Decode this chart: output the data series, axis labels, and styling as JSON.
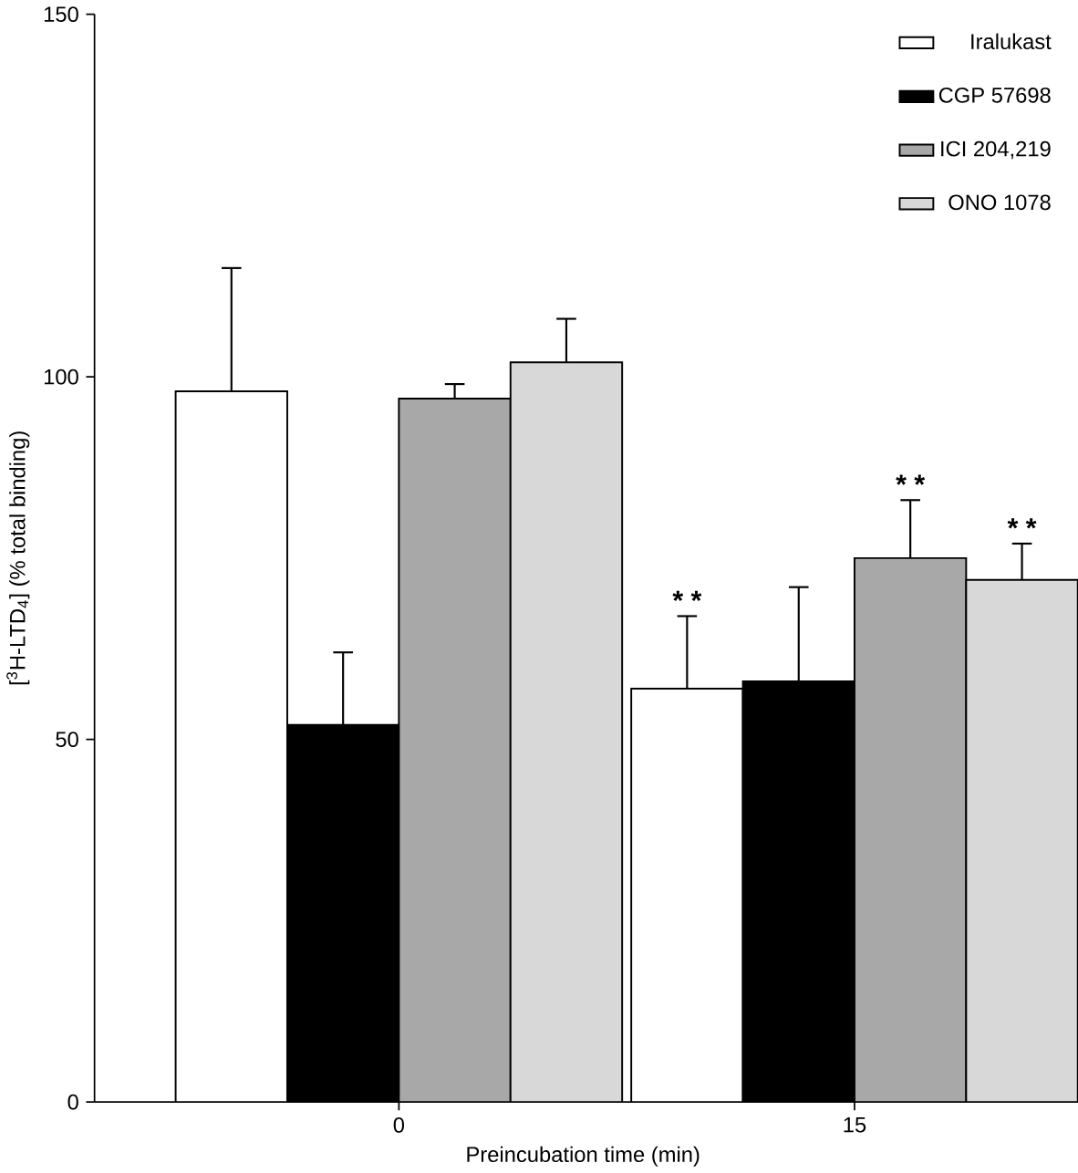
{
  "chart_data": {
    "type": "bar",
    "xlabel": "Preincubation time (min)",
    "ylabel": "[$^{3}$H-LTD$_{4}$] (% total binding)",
    "categories": [
      "0",
      "15"
    ],
    "series": [
      {
        "name": "Iralukast",
        "color": "#ffffff",
        "values": [
          98,
          57
        ],
        "errors": [
          [
            98,
            115
          ],
          [
            57,
            67
          ]
        ]
      },
      {
        "name": "CGP 57698",
        "color": "#000000",
        "values": [
          52,
          58
        ],
        "errors": [
          [
            52,
            62
          ],
          [
            58,
            71
          ]
        ]
      },
      {
        "name": "ICI 204,219",
        "color": "#a8a8a8",
        "values": [
          97,
          75
        ],
        "errors": [
          [
            97,
            99
          ],
          [
            75,
            83
          ]
        ]
      },
      {
        "name": "ONO 1078",
        "color": "#d8d8d8",
        "values": [
          102,
          72
        ],
        "errors": [
          [
            102,
            108
          ],
          [
            72,
            77
          ]
        ]
      }
    ],
    "ylim": [
      0,
      150
    ],
    "yticks": [
      0,
      50,
      100,
      150
    ],
    "legend": "top right",
    "annotations": [
      "* *",
      "* *",
      "* *"
    ]
  }
}
